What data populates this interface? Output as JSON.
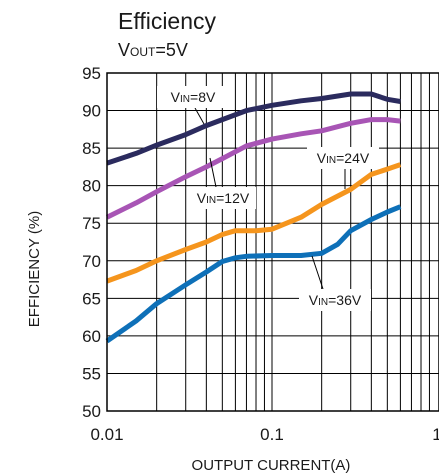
{
  "chart_data": {
    "type": "line",
    "title": "Efficiency",
    "subtitle": {
      "main": "V",
      "sub": "OUT",
      "rest": "=5V"
    },
    "xlabel": "OUTPUT CURRENT(A)",
    "ylabel": "EFFICIENCY (%)",
    "xscale": "log",
    "xlim": [
      0.01,
      1
    ],
    "ylim": [
      50,
      95
    ],
    "x_ticks": [
      {
        "value": 0.01,
        "label": "0.01"
      },
      {
        "value": 0.1,
        "label": "0.1"
      },
      {
        "value": 1,
        "label": "1"
      }
    ],
    "y_ticks": [
      50,
      55,
      60,
      65,
      70,
      75,
      80,
      85,
      90,
      95
    ],
    "grid": true,
    "series": [
      {
        "name": "VIN=8V",
        "label": {
          "main": "V",
          "sub": "IN",
          "rest": "=8V"
        },
        "color": "#2b2b5e",
        "points": [
          [
            0.01,
            83
          ],
          [
            0.015,
            84.3
          ],
          [
            0.02,
            85.4
          ],
          [
            0.03,
            86.8
          ],
          [
            0.04,
            88
          ],
          [
            0.05,
            88.8
          ],
          [
            0.07,
            90
          ],
          [
            0.1,
            90.7
          ],
          [
            0.15,
            91.3
          ],
          [
            0.2,
            91.6
          ],
          [
            0.3,
            92.2
          ],
          [
            0.4,
            92.2
          ],
          [
            0.5,
            91.5
          ],
          [
            0.6,
            91.2
          ]
        ]
      },
      {
        "name": "VIN=12V",
        "label": {
          "main": "V",
          "sub": "IN",
          "rest": "=12V"
        },
        "color": "#a855b5",
        "points": [
          [
            0.01,
            75.8
          ],
          [
            0.015,
            77.7
          ],
          [
            0.02,
            79.2
          ],
          [
            0.03,
            81.2
          ],
          [
            0.04,
            82.5
          ],
          [
            0.05,
            83.6
          ],
          [
            0.07,
            85.3
          ],
          [
            0.1,
            86.2
          ],
          [
            0.15,
            86.9
          ],
          [
            0.2,
            87.3
          ],
          [
            0.3,
            88.3
          ],
          [
            0.4,
            88.8
          ],
          [
            0.5,
            88.8
          ],
          [
            0.6,
            88.6
          ]
        ]
      },
      {
        "name": "VIN=24V",
        "label": {
          "main": "V",
          "sub": "IN",
          "rest": "=24V"
        },
        "color": "#f5951d",
        "points": [
          [
            0.01,
            67.3
          ],
          [
            0.015,
            68.7
          ],
          [
            0.02,
            70
          ],
          [
            0.03,
            71.5
          ],
          [
            0.04,
            72.5
          ],
          [
            0.05,
            73.5
          ],
          [
            0.06,
            74
          ],
          [
            0.07,
            74
          ],
          [
            0.08,
            74
          ],
          [
            0.1,
            74.2
          ],
          [
            0.15,
            75.8
          ],
          [
            0.2,
            77.5
          ],
          [
            0.3,
            79.5
          ],
          [
            0.4,
            81.5
          ],
          [
            0.5,
            82.2
          ],
          [
            0.6,
            82.8
          ]
        ]
      },
      {
        "name": "VIN=36V",
        "label": {
          "main": "V",
          "sub": "IN",
          "rest": "=36V"
        },
        "color": "#0e70b8",
        "points": [
          [
            0.01,
            59.3
          ],
          [
            0.015,
            62
          ],
          [
            0.02,
            64.3
          ],
          [
            0.03,
            66.8
          ],
          [
            0.04,
            68.5
          ],
          [
            0.05,
            69.9
          ],
          [
            0.06,
            70.4
          ],
          [
            0.07,
            70.6
          ],
          [
            0.1,
            70.7
          ],
          [
            0.15,
            70.7
          ],
          [
            0.2,
            71
          ],
          [
            0.25,
            72.2
          ],
          [
            0.3,
            74
          ],
          [
            0.4,
            75.5
          ],
          [
            0.5,
            76.5
          ],
          [
            0.6,
            77.2
          ]
        ]
      }
    ]
  }
}
